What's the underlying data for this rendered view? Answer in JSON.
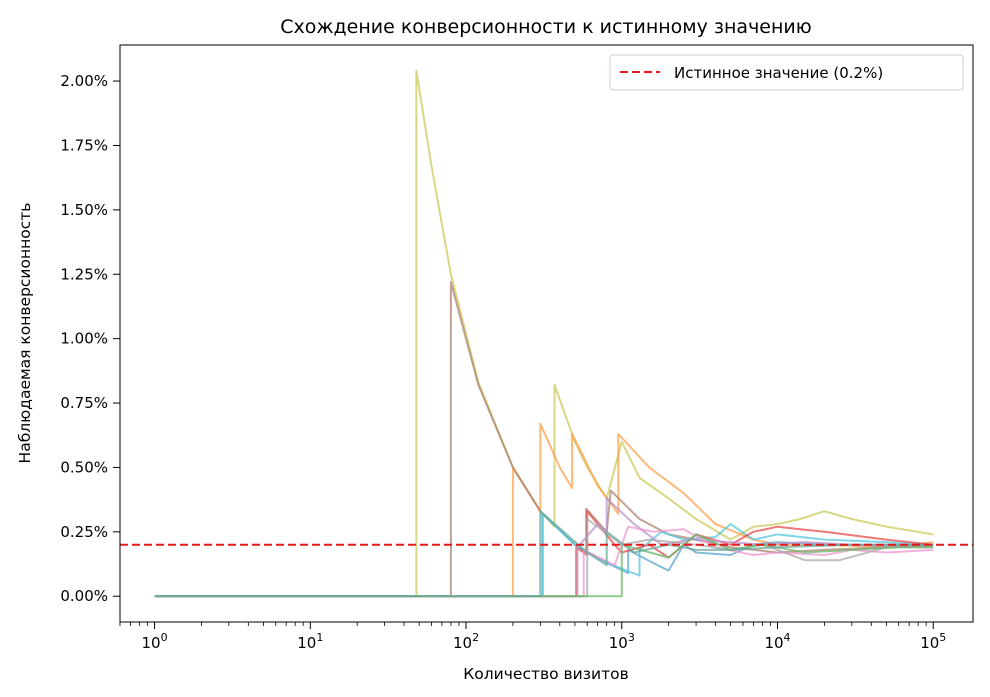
{
  "chart_data": {
    "type": "line",
    "title": "Схождение конверсионности к истинному значению",
    "xlabel": "Количество визитов",
    "ylabel": "Наблюдаемая конверсионность",
    "xscale": "log",
    "xlim": [
      0.6,
      180000
    ],
    "ylim": [
      -0.1,
      2.14
    ],
    "x_ticks": [
      {
        "value": 1,
        "base": "10",
        "exp": "0"
      },
      {
        "value": 10,
        "base": "10",
        "exp": "1"
      },
      {
        "value": 100,
        "base": "10",
        "exp": "2"
      },
      {
        "value": 1000,
        "base": "10",
        "exp": "3"
      },
      {
        "value": 10000,
        "base": "10",
        "exp": "4"
      },
      {
        "value": 100000,
        "base": "10",
        "exp": "5"
      }
    ],
    "y_ticks": [
      {
        "value": 0,
        "label": "0.00%"
      },
      {
        "value": 0.25,
        "label": "0.25%"
      },
      {
        "value": 0.5,
        "label": "0.50%"
      },
      {
        "value": 0.75,
        "label": "0.75%"
      },
      {
        "value": 1.0,
        "label": "1.00%"
      },
      {
        "value": 1.25,
        "label": "1.25%"
      },
      {
        "value": 1.5,
        "label": "1.50%"
      },
      {
        "value": 1.75,
        "label": "1.75%"
      },
      {
        "value": 2.0,
        "label": "2.00%"
      }
    ],
    "reference_line": {
      "value": 0.2,
      "label": "Истинное значение (0.2%)",
      "color": "#e41a1c",
      "style": "dashed"
    },
    "legend": {
      "position": "top-right"
    },
    "grid": false,
    "series": [
      {
        "color": "#cbc95a",
        "points": [
          [
            1,
            0
          ],
          [
            48,
            0
          ],
          [
            48,
            2.04
          ],
          [
            60,
            1.67
          ],
          [
            80,
            1.25
          ],
          [
            120,
            0.83
          ],
          [
            200,
            0.5
          ],
          [
            300,
            0.33
          ],
          [
            370,
            0.27
          ],
          [
            370,
            0.82
          ],
          [
            500,
            0.6
          ],
          [
            600,
            0.5
          ],
          [
            800,
            0.38
          ],
          [
            1000,
            0.6
          ],
          [
            1300,
            0.46
          ],
          [
            2000,
            0.38
          ],
          [
            3000,
            0.3
          ],
          [
            5000,
            0.22
          ],
          [
            7000,
            0.27
          ],
          [
            10000,
            0.28
          ],
          [
            14000,
            0.3
          ],
          [
            20000,
            0.33
          ],
          [
            30000,
            0.3
          ],
          [
            50000,
            0.27
          ],
          [
            100000,
            0.24
          ]
        ]
      },
      {
        "color": "#ffa04a",
        "points": [
          [
            1,
            0
          ],
          [
            200,
            0
          ],
          [
            200,
            0.5
          ],
          [
            300,
            0.33
          ],
          [
            300,
            0.67
          ],
          [
            400,
            0.5
          ],
          [
            480,
            0.42
          ],
          [
            480,
            0.63
          ],
          [
            700,
            0.43
          ],
          [
            950,
            0.32
          ],
          [
            950,
            0.63
          ],
          [
            1500,
            0.5
          ],
          [
            2500,
            0.4
          ],
          [
            4000,
            0.28
          ],
          [
            7000,
            0.22
          ],
          [
            10000,
            0.2
          ],
          [
            20000,
            0.2
          ],
          [
            50000,
            0.19
          ],
          [
            100000,
            0.21
          ]
        ]
      },
      {
        "color": "#ad8272",
        "points": [
          [
            1,
            0
          ],
          [
            80,
            0
          ],
          [
            80,
            1.22
          ],
          [
            120,
            0.82
          ],
          [
            200,
            0.5
          ],
          [
            300,
            0.33
          ],
          [
            500,
            0.2
          ],
          [
            590,
            0.17
          ],
          [
            590,
            0.34
          ],
          [
            800,
            0.25
          ],
          [
            850,
            0.41
          ],
          [
            1300,
            0.3
          ],
          [
            2000,
            0.24
          ],
          [
            3000,
            0.22
          ],
          [
            5000,
            0.19
          ],
          [
            10000,
            0.17
          ],
          [
            20000,
            0.18
          ],
          [
            50000,
            0.19
          ],
          [
            100000,
            0.2
          ]
        ]
      },
      {
        "color": "#5ba7cf",
        "points": [
          [
            1,
            0
          ],
          [
            310,
            0
          ],
          [
            310,
            0.32
          ],
          [
            500,
            0.2
          ],
          [
            800,
            0.13
          ],
          [
            1100,
            0.09
          ],
          [
            1100,
            0.18
          ],
          [
            1700,
            0.12
          ],
          [
            2000,
            0.1
          ],
          [
            2500,
            0.2
          ],
          [
            3000,
            0.17
          ],
          [
            5000,
            0.16
          ],
          [
            7000,
            0.2
          ],
          [
            10000,
            0.21
          ],
          [
            20000,
            0.2
          ],
          [
            50000,
            0.2
          ],
          [
            100000,
            0.2
          ]
        ]
      },
      {
        "color": "#55c7de",
        "points": [
          [
            1,
            0
          ],
          [
            310,
            0
          ],
          [
            310,
            0.32
          ],
          [
            500,
            0.2
          ],
          [
            800,
            0.13
          ],
          [
            1300,
            0.08
          ],
          [
            1300,
            0.18
          ],
          [
            1800,
            0.25
          ],
          [
            2500,
            0.22
          ],
          [
            4000,
            0.23
          ],
          [
            5000,
            0.28
          ],
          [
            7000,
            0.22
          ],
          [
            10000,
            0.24
          ],
          [
            20000,
            0.22
          ],
          [
            50000,
            0.21
          ],
          [
            100000,
            0.2
          ]
        ]
      },
      {
        "color": "#e84b4b",
        "points": [
          [
            1,
            0
          ],
          [
            510,
            0
          ],
          [
            510,
            0.19
          ],
          [
            600,
            0.16
          ],
          [
            600,
            0.33
          ],
          [
            900,
            0.2
          ],
          [
            1000,
            0.17
          ],
          [
            1500,
            0.2
          ],
          [
            2000,
            0.15
          ],
          [
            3000,
            0.24
          ],
          [
            5000,
            0.2
          ],
          [
            7000,
            0.25
          ],
          [
            10000,
            0.27
          ],
          [
            14000,
            0.26
          ],
          [
            20000,
            0.25
          ],
          [
            50000,
            0.22
          ],
          [
            100000,
            0.2
          ]
        ]
      },
      {
        "color": "#b492cf",
        "points": [
          [
            1,
            0
          ],
          [
            520,
            0
          ],
          [
            520,
            0.19
          ],
          [
            700,
            0.28
          ],
          [
            800,
            0.25
          ],
          [
            800,
            0.38
          ],
          [
            1200,
            0.28
          ],
          [
            1800,
            0.2
          ],
          [
            2800,
            0.22
          ],
          [
            5000,
            0.21
          ],
          [
            8000,
            0.2
          ],
          [
            15000,
            0.21
          ],
          [
            30000,
            0.2
          ],
          [
            100000,
            0.19
          ]
        ]
      },
      {
        "color": "#ef95d0",
        "points": [
          [
            1,
            0
          ],
          [
            570,
            0
          ],
          [
            570,
            0.18
          ],
          [
            900,
            0.12
          ],
          [
            1100,
            0.27
          ],
          [
            1600,
            0.25
          ],
          [
            2500,
            0.26
          ],
          [
            4000,
            0.19
          ],
          [
            7000,
            0.16
          ],
          [
            10000,
            0.17
          ],
          [
            20000,
            0.16
          ],
          [
            30000,
            0.18
          ],
          [
            50000,
            0.17
          ],
          [
            100000,
            0.18
          ]
        ]
      },
      {
        "color": "#aaaaaa",
        "points": [
          [
            1,
            0
          ],
          [
            600,
            0
          ],
          [
            600,
            0.3
          ],
          [
            1000,
            0.2
          ],
          [
            1500,
            0.22
          ],
          [
            3000,
            0.2
          ],
          [
            5000,
            0.18
          ],
          [
            8000,
            0.2
          ],
          [
            10000,
            0.18
          ],
          [
            15000,
            0.14
          ],
          [
            25000,
            0.14
          ],
          [
            50000,
            0.19
          ],
          [
            100000,
            0.19
          ]
        ]
      },
      {
        "color": "#6ab86a",
        "points": [
          [
            1,
            0
          ],
          [
            1000,
            0
          ],
          [
            1000,
            0.2
          ],
          [
            2000,
            0.15
          ],
          [
            3000,
            0.24
          ],
          [
            5000,
            0.18
          ],
          [
            8000,
            0.2
          ],
          [
            15000,
            0.17
          ],
          [
            30000,
            0.18
          ],
          [
            60000,
            0.19
          ],
          [
            100000,
            0.19
          ]
        ]
      },
      {
        "color": "#6aa89a",
        "points": [
          [
            1,
            0
          ],
          [
            300,
            0
          ],
          [
            300,
            0.33
          ],
          [
            600,
            0.17
          ],
          [
            800,
            0.12
          ],
          [
            800,
            0.25
          ],
          [
            1200,
            0.17
          ],
          [
            2000,
            0.2
          ],
          [
            3000,
            0.18
          ],
          [
            5000,
            0.18
          ],
          [
            10000,
            0.19
          ],
          [
            30000,
            0.2
          ],
          [
            100000,
            0.2
          ]
        ]
      }
    ]
  }
}
